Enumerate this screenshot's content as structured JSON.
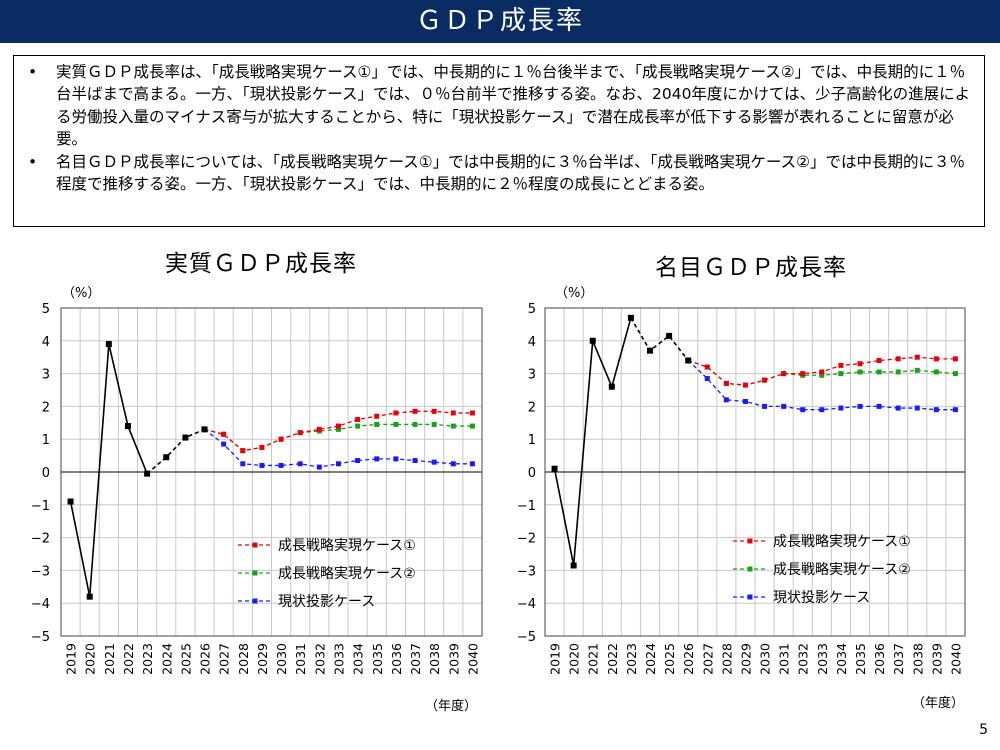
{
  "header": {
    "title": "ＧＤＰ成長率"
  },
  "summary": {
    "bullet_symbol": "•",
    "bullets": [
      "実質ＧＤＰ成長率は、「成長戦略実現ケース①」では、中長期的に１％台後半まで、「成長戦略実現ケース②」では、中長期的に１％台半ばまで高まる。一方、「現状投影ケース」では、０％台前半で推移する姿。なお、2040年度にかけては、少子高齢化の進展による労働投入量のマイナス寄与が拡大することから、特に「現状投影ケース」で潜在成長率が低下する影響が表れることに留意が必要。",
      "名目ＧＤＰ成長率については、「成長戦略実現ケース①」では中長期的に３％台半ば、「成長戦略実現ケース②」では中長期的に３％程度で推移する姿。一方、「現状投影ケース」では、中長期的に２％程度の成長にとどまる姿。"
    ]
  },
  "colors": {
    "case1": "#e8000b",
    "case2": "#1aa01a",
    "baseline": "#1a1aff",
    "history": "#000000",
    "header_bg": "#0b2c63"
  },
  "chart_data": [
    {
      "type": "line",
      "title": "実質ＧＤＰ成長率",
      "ylabel": "（%）",
      "xlabel": "（年度）",
      "ylim": [
        -5,
        5
      ],
      "yticks": [
        "5",
        "4",
        "3",
        "2",
        "1",
        "0",
        "−1",
        "−2",
        "−3",
        "−4",
        "−5"
      ],
      "x": [
        "2019",
        "2020",
        "2021",
        "2022",
        "2023",
        "2024",
        "2025",
        "2026",
        "2027",
        "2028",
        "2029",
        "2030",
        "2031",
        "2032",
        "2033",
        "2034",
        "2035",
        "2036",
        "2037",
        "2038",
        "2039",
        "2040"
      ],
      "grid": true,
      "legend_position": "lower-right",
      "history": {
        "values": [
          -0.9,
          -3.8,
          3.9,
          1.4,
          -0.05,
          0.45,
          1.05,
          1.3
        ]
      },
      "series": [
        {
          "name": "成長戦略実現ケース①",
          "key": "case1",
          "values": [
            null,
            null,
            null,
            null,
            null,
            null,
            null,
            1.3,
            1.15,
            0.65,
            0.75,
            1.0,
            1.2,
            1.3,
            1.4,
            1.6,
            1.7,
            1.8,
            1.85,
            1.85,
            1.8,
            1.8
          ]
        },
        {
          "name": "成長戦略実現ケース②",
          "key": "case2",
          "values": [
            null,
            null,
            null,
            null,
            null,
            null,
            null,
            1.3,
            1.15,
            0.65,
            0.75,
            1.0,
            1.2,
            1.25,
            1.3,
            1.4,
            1.45,
            1.45,
            1.45,
            1.45,
            1.4,
            1.4
          ]
        },
        {
          "name": "現状投影ケース",
          "key": "baseline",
          "values": [
            null,
            null,
            null,
            null,
            null,
            null,
            null,
            1.3,
            0.85,
            0.25,
            0.2,
            0.2,
            0.25,
            0.15,
            0.25,
            0.35,
            0.4,
            0.4,
            0.35,
            0.3,
            0.25,
            0.25
          ]
        }
      ]
    },
    {
      "type": "line",
      "title": "名目ＧＤＰ成長率",
      "ylabel": "（%）",
      "xlabel": "（年度）",
      "ylim": [
        -5,
        5
      ],
      "yticks": [
        "5",
        "4",
        "3",
        "2",
        "1",
        "0",
        "−1",
        "−2",
        "−3",
        "−4",
        "−5"
      ],
      "x": [
        "2019",
        "2020",
        "2021",
        "2022",
        "2023",
        "2024",
        "2025",
        "2026",
        "2027",
        "2028",
        "2029",
        "2030",
        "2031",
        "2032",
        "2033",
        "2034",
        "2035",
        "2036",
        "2037",
        "2038",
        "2039",
        "2040"
      ],
      "grid": true,
      "legend_position": "lower-right",
      "history": {
        "values": [
          0.1,
          -2.85,
          4.0,
          2.6,
          4.7,
          3.7,
          4.15,
          3.4
        ]
      },
      "series": [
        {
          "name": "成長戦略実現ケース①",
          "key": "case1",
          "values": [
            null,
            null,
            null,
            null,
            null,
            null,
            null,
            3.4,
            3.2,
            2.7,
            2.65,
            2.8,
            3.0,
            3.0,
            3.05,
            3.25,
            3.3,
            3.4,
            3.45,
            3.5,
            3.45,
            3.45
          ]
        },
        {
          "name": "成長戦略実現ケース②",
          "key": "case2",
          "values": [
            null,
            null,
            null,
            null,
            null,
            null,
            null,
            3.4,
            3.2,
            2.7,
            2.65,
            2.8,
            3.0,
            2.95,
            2.95,
            3.0,
            3.05,
            3.05,
            3.05,
            3.1,
            3.05,
            3.0
          ]
        },
        {
          "name": "現状投影ケース",
          "key": "baseline",
          "values": [
            null,
            null,
            null,
            null,
            null,
            null,
            null,
            3.4,
            2.85,
            2.2,
            2.15,
            2.0,
            2.0,
            1.9,
            1.9,
            1.95,
            2.0,
            2.0,
            1.95,
            1.95,
            1.9,
            1.9
          ]
        }
      ]
    }
  ],
  "page_number": "5"
}
